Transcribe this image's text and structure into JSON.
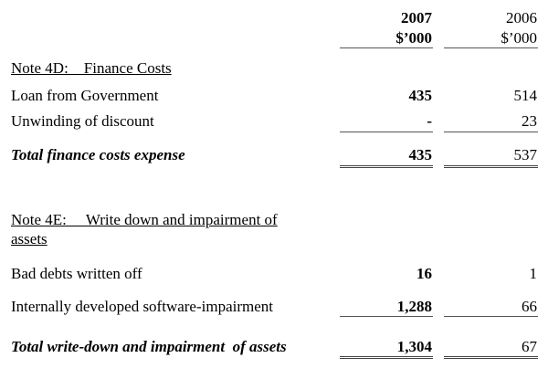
{
  "header": {
    "col2007_year": "2007",
    "col2007_unit": "$’000",
    "col2006_year": "2006",
    "col2006_unit": "$’000"
  },
  "note4d": {
    "title": "Note 4D:    Finance Costs",
    "rows": [
      {
        "label": "Loan from Government",
        "v2007": "435",
        "v2006": "514"
      },
      {
        "label": "Unwinding of discount",
        "v2007": "-",
        "v2006": "23"
      }
    ],
    "total": {
      "label": "Total finance costs expense",
      "v2007": "435",
      "v2006": "537"
    }
  },
  "note4e": {
    "title_line1": "Note 4E:     Write down and impairment of",
    "title_line2": "assets",
    "rows": [
      {
        "label": "Bad debts written off",
        "v2007": "16",
        "v2006": "1"
      },
      {
        "label": "Internally developed software-impairment",
        "v2007": "1,288",
        "v2006": "66"
      }
    ],
    "total": {
      "label": "Total write-down and impairment  of assets",
      "v2007": "1,304",
      "v2006": "67"
    }
  }
}
